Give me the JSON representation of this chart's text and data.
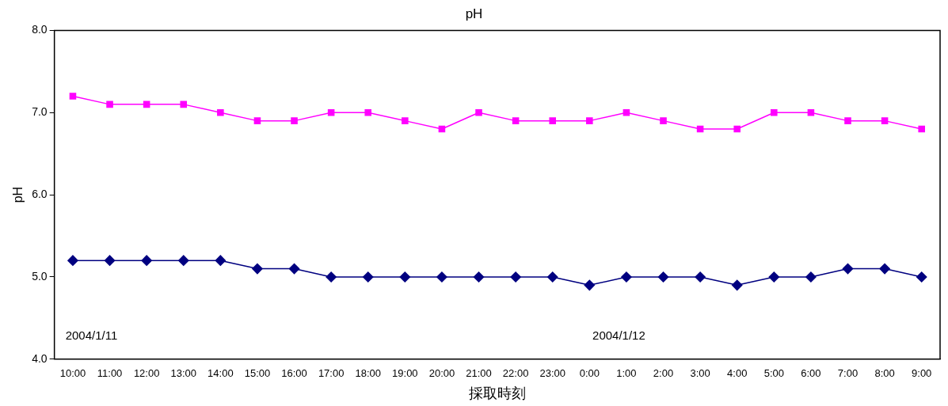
{
  "chart_data": {
    "type": "line",
    "title": "pH",
    "xlabel": "採取時刻",
    "ylabel": "pH",
    "categories": [
      "10:00",
      "11:00",
      "12:00",
      "13:00",
      "14:00",
      "15:00",
      "16:00",
      "17:00",
      "18:00",
      "19:00",
      "20:00",
      "21:00",
      "22:00",
      "23:00",
      "0:00",
      "1:00",
      "2:00",
      "3:00",
      "4:00",
      "5:00",
      "6:00",
      "7:00",
      "8:00",
      "9:00"
    ],
    "series": [
      {
        "color": "#ff00ff",
        "marker": "square",
        "values": [
          7.2,
          7.1,
          7.1,
          7.1,
          7.0,
          6.9,
          6.9,
          7.0,
          7.0,
          6.9,
          6.8,
          7.0,
          6.9,
          6.9,
          6.9,
          7.0,
          6.9,
          6.8,
          6.8,
          7.0,
          7.0,
          6.9,
          6.9,
          6.8
        ]
      },
      {
        "color": "#000080",
        "marker": "diamond",
        "values": [
          5.2,
          5.2,
          5.2,
          5.2,
          5.2,
          5.1,
          5.1,
          5.0,
          5.0,
          5.0,
          5.0,
          5.0,
          5.0,
          5.0,
          4.9,
          5.0,
          5.0,
          5.0,
          4.9,
          5.0,
          5.0,
          5.1,
          5.1,
          5.0
        ]
      }
    ],
    "ylim": [
      4,
      8
    ],
    "yticks": [
      {
        "value": 4,
        "label": "4.0"
      },
      {
        "value": 5,
        "label": "5.0"
      },
      {
        "value": 6,
        "label": "6.0"
      },
      {
        "value": 7,
        "label": "7.0"
      },
      {
        "value": 8,
        "label": "8.0"
      }
    ],
    "grid": false,
    "legend": false,
    "line_style": "solid",
    "annotations": [
      "2004/1/11",
      "2004/1/12"
    ]
  }
}
